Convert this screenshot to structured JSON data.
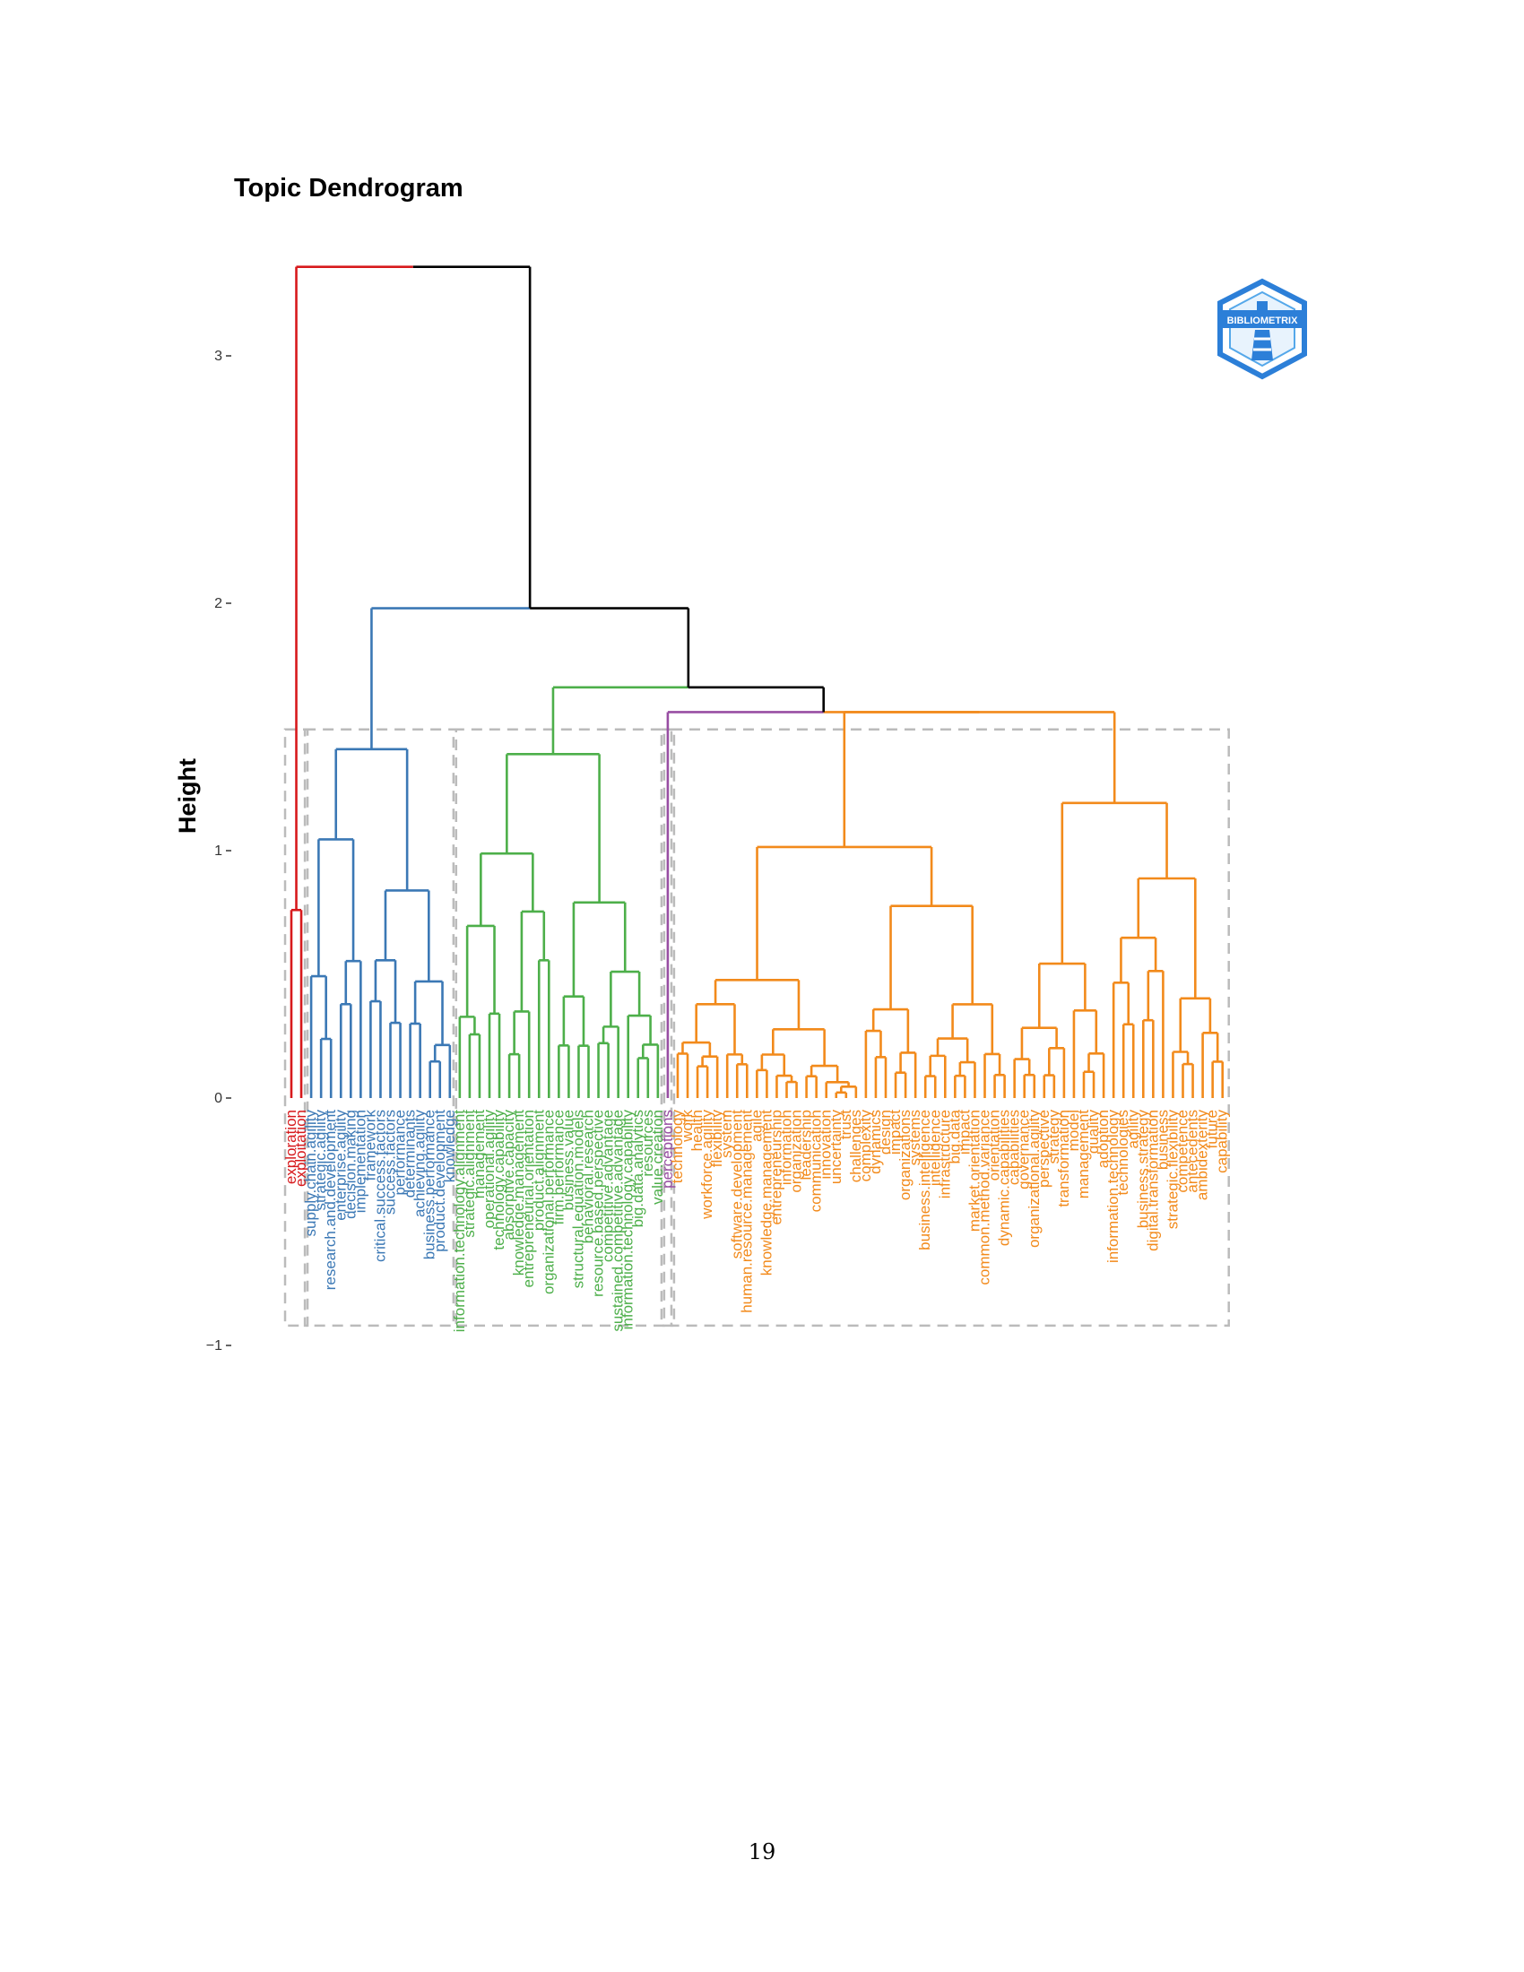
{
  "page": {
    "number": "19"
  },
  "colors": {
    "cluster1": "#d7191c",
    "cluster2": "#3b78b5",
    "cluster3": "#4daf4a",
    "cluster4": "#984ea3",
    "cluster5": "#f28a1b",
    "root": "#000000",
    "box": "#bbbbbb",
    "logo": "#2c7fd8"
  },
  "chart_data": {
    "type": "dendrogram",
    "title": "Topic Dendrogram",
    "ylabel": "Height",
    "xlabel": "",
    "ylim": [
      -1,
      3.4
    ],
    "yticks": [
      -1,
      0,
      1,
      2,
      3
    ],
    "ytick_labels": [
      "−1",
      "0",
      "1",
      "2",
      "3"
    ],
    "logo_text": "BIBLIOMETRIX",
    "merge_heights": {
      "root": 3.36,
      "level2": 1.98,
      "level3": 1.66,
      "cluster1_internal": 0.76,
      "cluster2_top": 1.41,
      "cluster3_top": 1.39,
      "cluster4_join": 1.56,
      "cluster5_top": 1.56
    },
    "clusters": [
      {
        "id": 1,
        "color_key": "cluster1",
        "leaves": [
          "exploration",
          "exploitation"
        ]
      },
      {
        "id": 2,
        "color_key": "cluster2",
        "leaves": [
          "supply.chain.agility",
          "strategic.agility",
          "research.and.development",
          "enterprise.agility",
          "decision.making",
          "implementation",
          "framework",
          "critical.success.factors",
          "success.factors",
          "performance",
          "determinants",
          "achieving.agility",
          "business.performance",
          "product.development",
          "knowledge"
        ]
      },
      {
        "id": 3,
        "color_key": "cluster3",
        "leaves": [
          "information.technology.alignment",
          "strategic.alignment",
          "management",
          "operational.agility",
          "technology.capability",
          "absorptive.capacity",
          "knowledge.management",
          "entrepreneurial.orientation",
          "product.alignment",
          "organizational.performance",
          "firm.performance",
          "business.value",
          "structural.equation.models",
          "behavioral.research",
          "resource.based.perspective",
          "competitive.advantage",
          "sustained.competitive.advantage",
          "information.technology.capability",
          "big.data.analytics",
          "resources",
          "value.creation"
        ]
      },
      {
        "id": 4,
        "color_key": "cluster4",
        "leaves": [
          "perceptions"
        ]
      },
      {
        "id": 5,
        "color_key": "cluster5",
        "leaves": [
          "technology",
          "work",
          "health",
          "workforce.agility",
          "flexibility",
          "system",
          "software.development",
          "human.resource.management",
          "agile",
          "knowledge.management",
          "entrepreneurship",
          "information",
          "organization",
          "leadership",
          "communication",
          "innovation",
          "uncertainty",
          "trust",
          "challenges",
          "complexity",
          "dynamics",
          "design",
          "impact",
          "organizations",
          "systems",
          "business.intelligence",
          "intelligence",
          "infrastructure",
          "big.data",
          "impact",
          "market.orientation",
          "common.method.variance",
          "orientation",
          "dynamic.capabilities",
          "capabilities",
          "governance",
          "organizational.agility",
          "perspective",
          "strategy",
          "transformation",
          "model",
          "management",
          "quality",
          "adoption",
          "information.technology",
          "technologies",
          "agility",
          "business.strategy",
          "digital.transformation",
          "business",
          "strategic.flexibility",
          "competence",
          "antecedents",
          "ambidexterity",
          "future",
          "capability"
        ]
      }
    ]
  }
}
